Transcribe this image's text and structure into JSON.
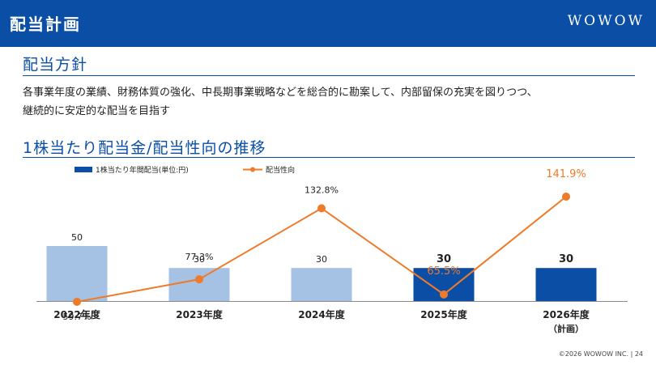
{
  "header": {
    "title": "配当計画",
    "logo": "WOWOW"
  },
  "policy": {
    "heading": "配当方針",
    "line1": "各事業年度の業績、財務体質の強化、中長期事業戦略などを総合的に勘案して、内部留保の充実を図りつつ、",
    "line2": "継続的に安定的な配当を目指す"
  },
  "chart_heading": "1株当たり配当金/配当性向の推移",
  "chart_data": {
    "type": "bar",
    "categories": [
      "2022年度",
      "2023年度",
      "2024年度",
      "2025年度",
      "2026年度"
    ],
    "category_sub": [
      "",
      "",
      "",
      "",
      "（計画）"
    ],
    "series": [
      {
        "name": "1株当たり年間配当(単位:円)",
        "type": "bar",
        "values": [
          50,
          30,
          30,
          30,
          30
        ],
        "labels": [
          "50",
          "30",
          "30",
          "30",
          "30"
        ]
      },
      {
        "name": "配当性向",
        "type": "line",
        "values": [
          59.7,
          77.3,
          132.8,
          65.5,
          141.9
        ],
        "labels": [
          "59.7%",
          "77.3%",
          "132.8%",
          "65.5%",
          "141.9%"
        ]
      }
    ],
    "colors": {
      "bar_actual": "#a5c1e4",
      "bar_highlight": "#0a4ea5",
      "line": "#ef7a2a",
      "line_label_highlight": "#ef7a2a"
    }
  },
  "footer": "©2026 WOWOW INC.  | 24"
}
